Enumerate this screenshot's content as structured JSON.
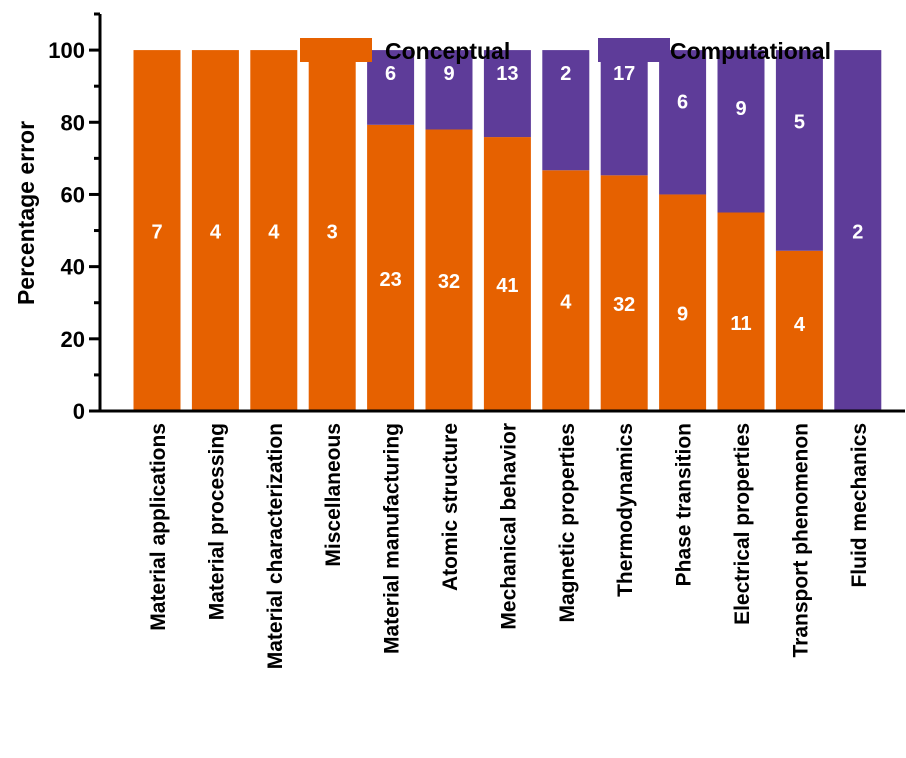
{
  "chart_data": {
    "type": "bar",
    "stacked": true,
    "title": "",
    "xlabel": "",
    "ylabel": "Percentage error",
    "ylim": [
      0,
      110
    ],
    "yticks": [
      0,
      20,
      40,
      60,
      80,
      100
    ],
    "grid": false,
    "legend_position": "top-right",
    "categories": [
      "Material applications",
      "Material processing",
      "Material characterization",
      "Miscellaneous",
      "Material manufacturing",
      "Atomic structure",
      "Mechanical behavior",
      "Magnetic properties",
      "Thermodynamics",
      "Phase transition",
      "Electrical properties",
      "Transport phenomenon",
      "Fluid mechanics"
    ],
    "series": [
      {
        "name": "Conceptual",
        "color": "#e66100",
        "counts": [
          7,
          4,
          4,
          3,
          23,
          32,
          41,
          4,
          32,
          9,
          11,
          4,
          0
        ],
        "values": [
          100,
          100,
          100,
          100,
          79.3,
          78.0,
          75.9,
          66.7,
          65.3,
          60.0,
          55.0,
          44.4,
          0
        ]
      },
      {
        "name": "Computational",
        "color": "#5e3c99",
        "counts": [
          0,
          0,
          0,
          0,
          6,
          9,
          13,
          2,
          17,
          6,
          9,
          5,
          2
        ],
        "values": [
          0,
          0,
          0,
          0,
          20.7,
          22.0,
          24.1,
          33.3,
          34.7,
          40.0,
          45.0,
          55.6,
          100
        ]
      }
    ]
  }
}
